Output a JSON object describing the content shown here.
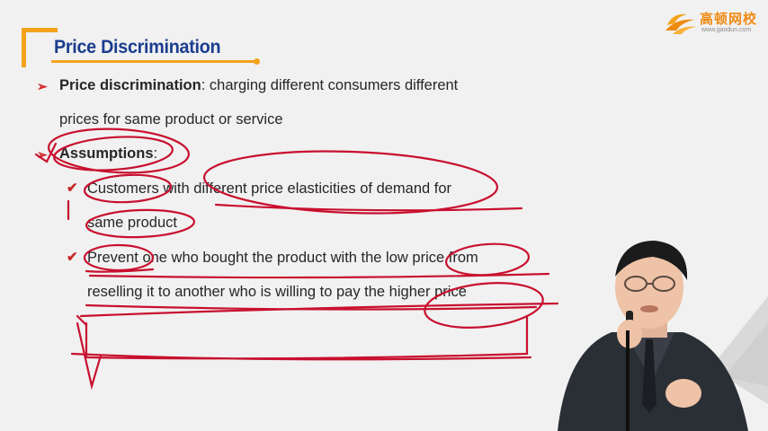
{
  "slide": {
    "title": "Price Discrimination",
    "definition": {
      "term": "Price discrimination",
      "text_line1": ": charging different consumers different",
      "text_line2": "prices for same product or service"
    },
    "assumptions": {
      "heading": "Assumptions",
      "colon": ":",
      "items": [
        {
          "line1": "Customers with different price elasticities of demand for",
          "line2": "same product"
        },
        {
          "line1": "Prevent one who bought the product with the low price from",
          "line2": "reselling it to another who is willing to pay the higher price"
        }
      ]
    }
  },
  "logo": {
    "name_cn": "高顿网校",
    "url": "www.gaodun.com"
  },
  "colors": {
    "accent_orange": "#f2a31b",
    "title_blue": "#1a3d8f",
    "ink_red": "#c8102e",
    "bullet_red": "#d11f1f"
  },
  "icons": [
    "arrow-bullet-icon",
    "checkmark-icon",
    "gaodun-logo-icon"
  ]
}
